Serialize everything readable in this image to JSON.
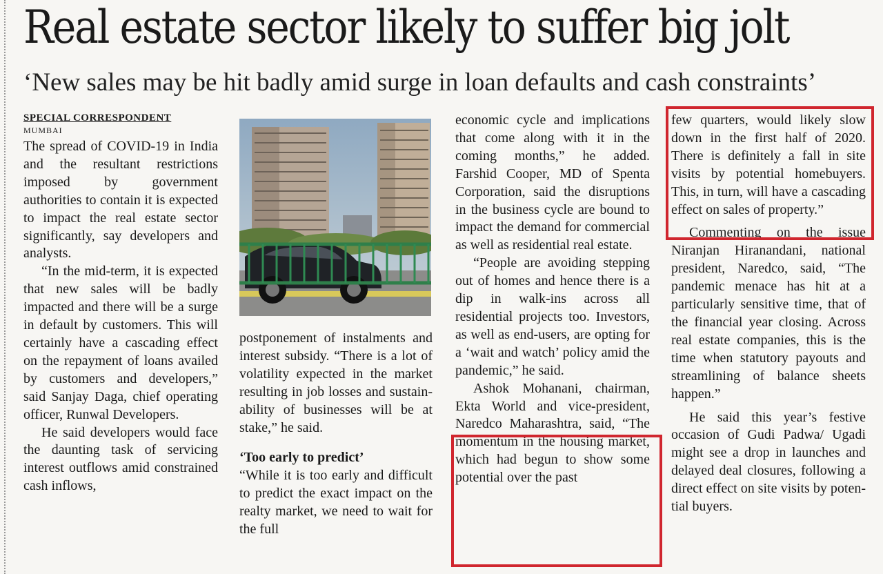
{
  "headline": "Real estate sector likely to suffer big jolt",
  "subhead": "‘New sales may be hit badly amid surge in loan defaults and cash constraints’",
  "byline": "SPECIAL CORRESPONDENT",
  "dateline": "MUMBAI",
  "photo_alt": "",
  "col1": {
    "p1": "The spread of COVID-19 in India and the resultant res­trictions imposed by govern­ment authorities to contain it is expected to impact the real estate sector significant­ly, say developers and analysts.",
    "p2": "“In the mid-term, it is ex­pected that new sales will be badly impacted and there will be a surge in default by customers. This will certain­ly have a cascading effect on the repayment of loans availed by customers and de­velopers,” said Sanjay Daga, chief operating officer, Run­wal Developers.",
    "p3": "He said developers would face the daunting task of ser­vicing interest outflows amid constrained cash inflows,"
  },
  "col2": {
    "p1": "postponement of instal­ments and interest subsidy. “There is a lot of volatility ex­pected in the market result­ing in job losses and sustain­ability of businesses will be at stake,” he said.",
    "crosshead": "‘Too early to predict’",
    "p2": "“While it is too early and dif­ficult to predict the exact im­pact on the realty market, we need to wait for the full"
  },
  "col3": {
    "p1": "economic cycle and implica­tions that come along with it in the coming months,” he added. Farshid Cooper, MD of Spenta Corporation, said the disruptions in the busi­ness cycle are bound to im­pact the demand for com­mercial as well as residential real estate.",
    "p2": "“People are avoiding step­ping out of homes and hence there is a dip in walk-ins across all residential projects too. Investors, as well as end-users, are opting for a ‘wait and watch’ policy amid the pandemic,” he said.",
    "p3": "Ashok Mohanani, chair­man, Ekta World and vice-president, Naredco Maha­rashtra, said, “The momen­tum in the housing market, which had begun to show some potential over the past"
  },
  "col4": {
    "p1": "few quarters, would likely slow down in the first half of 2020. There is definitely a fall in site visits by potential homebuyers. This, in turn, will have a cascading effect on sales of property.”",
    "p2": "Commenting on the issue Niranjan Hiranandani, na­tional president, Naredco, said, “The pandemic me­nace has hit at a particularly sensitive time, that of the fi­nancial year closing. Across real estate companies, this is the time when statutory pay­outs and streamlining of ba­lance sheets happen.”",
    "p3": "He said this year’s festive occasion of Gudi Padwa/ Ugadi might see a drop in launches and delayed deal closures, following a direct effect on site visits by poten­tial buyers."
  },
  "colors": {
    "highlight": "#d0262e",
    "paper": "#f7f6f3",
    "ink": "#1a1a1a"
  }
}
